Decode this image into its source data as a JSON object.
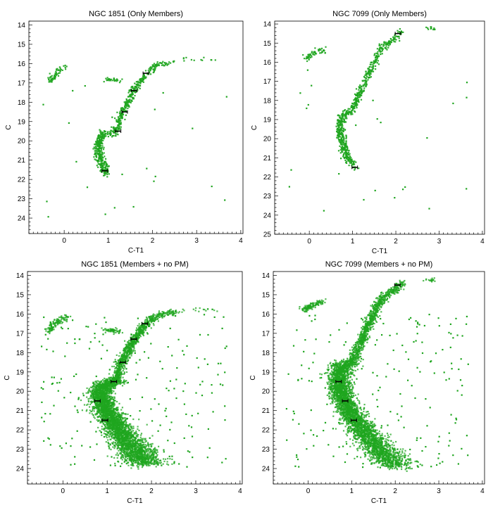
{
  "chart_data": [
    {
      "type": "scatter",
      "title": "NGC 1851 (Only Members)",
      "xlabel": "C-T1",
      "ylabel": "C",
      "xlim": [
        -0.8,
        4.05
      ],
      "ylim": [
        24.8,
        13.8
      ],
      "y_inverted": true,
      "xticks": [
        0,
        1,
        2,
        3,
        4
      ],
      "yticks": [
        14,
        15,
        16,
        17,
        18,
        19,
        20,
        21,
        22,
        23,
        24
      ],
      "marker_color": "#1fa51f",
      "density": "low",
      "sequences": {
        "main_sequence": [
          [
            0.95,
            21.7
          ],
          [
            0.83,
            21.0
          ],
          [
            0.78,
            20.4
          ],
          [
            0.8,
            19.9
          ],
          [
            0.9,
            19.65
          ],
          [
            1.1,
            19.6
          ],
          [
            1.2,
            19.45
          ]
        ],
        "red_giant_branch": [
          [
            1.2,
            19.45
          ],
          [
            1.25,
            19.0
          ],
          [
            1.32,
            18.5
          ],
          [
            1.45,
            18.0
          ],
          [
            1.55,
            17.5
          ],
          [
            1.7,
            17.0
          ],
          [
            1.88,
            16.5
          ],
          [
            2.1,
            16.1
          ],
          [
            2.5,
            15.9
          ]
        ],
        "horizontal_branch": [
          [
            -0.3,
            16.9
          ],
          [
            -0.2,
            16.5
          ],
          [
            -0.05,
            16.3
          ],
          [
            0.1,
            16.15
          ]
        ],
        "red_clump": [
          [
            0.95,
            16.8
          ],
          [
            1.1,
            16.85
          ],
          [
            1.25,
            16.9
          ]
        ],
        "bright_giants": [
          [
            2.6,
            15.8
          ],
          [
            3.0,
            15.75
          ],
          [
            3.45,
            15.8
          ]
        ]
      },
      "error_bars": [
        [
          0.92,
          21.55
        ],
        [
          1.22,
          19.5
        ],
        [
          1.37,
          18.5
        ],
        [
          1.58,
          17.4
        ],
        [
          1.85,
          16.5
        ]
      ]
    },
    {
      "type": "scatter",
      "title": "NGC 7099 (Only Members)",
      "xlabel": "C-T1",
      "ylabel": "C",
      "xlim": [
        -0.8,
        4.05
      ],
      "ylim": [
        25.0,
        13.85
      ],
      "y_inverted": true,
      "xticks": [
        0,
        1,
        2,
        3,
        4
      ],
      "yticks": [
        14,
        15,
        16,
        17,
        18,
        19,
        20,
        21,
        22,
        23,
        24,
        25
      ],
      "marker_color": "#1fa51f",
      "density": "low",
      "sequences": {
        "main_sequence": [
          [
            1.05,
            21.5
          ],
          [
            0.85,
            20.8
          ],
          [
            0.75,
            20.0
          ],
          [
            0.7,
            19.4
          ],
          [
            0.75,
            18.9
          ],
          [
            0.9,
            18.6
          ],
          [
            1.0,
            18.5
          ]
        ],
        "red_giant_branch": [
          [
            1.0,
            18.5
          ],
          [
            1.1,
            18.0
          ],
          [
            1.2,
            17.5
          ],
          [
            1.3,
            17.0
          ],
          [
            1.4,
            16.5
          ],
          [
            1.5,
            16.0
          ],
          [
            1.6,
            15.5
          ],
          [
            1.75,
            15.1
          ],
          [
            1.95,
            14.8
          ],
          [
            2.15,
            14.4
          ]
        ],
        "horizontal_branch": [
          [
            -0.1,
            15.8
          ],
          [
            0.05,
            15.6
          ],
          [
            0.2,
            15.45
          ],
          [
            0.35,
            15.35
          ]
        ],
        "bright_giants": [
          [
            2.75,
            14.2
          ],
          [
            2.85,
            14.25
          ]
        ]
      },
      "error_bars": [
        [
          1.05,
          21.5
        ],
        [
          2.05,
          14.5
        ]
      ]
    },
    {
      "type": "scatter",
      "title": "NGC 1851 (Members + no PM)",
      "xlabel": "C-T1",
      "ylabel": "C",
      "xlim": [
        -0.8,
        4.05
      ],
      "ylim": [
        24.8,
        13.8
      ],
      "y_inverted": true,
      "xticks": [
        0,
        1,
        2,
        3,
        4
      ],
      "yticks": [
        14,
        15,
        16,
        17,
        18,
        19,
        20,
        21,
        22,
        23,
        24
      ],
      "marker_color": "#1fa51f",
      "density": "high",
      "sequences": {
        "main_sequence": [
          [
            1.75,
            23.8
          ],
          [
            1.55,
            23.2
          ],
          [
            1.35,
            22.5
          ],
          [
            1.12,
            21.7
          ],
          [
            0.95,
            21.0
          ],
          [
            0.85,
            20.4
          ],
          [
            0.85,
            19.9
          ],
          [
            1.0,
            19.6
          ],
          [
            1.2,
            19.45
          ]
        ],
        "red_giant_branch": [
          [
            1.2,
            19.45
          ],
          [
            1.25,
            19.0
          ],
          [
            1.32,
            18.5
          ],
          [
            1.45,
            18.0
          ],
          [
            1.55,
            17.5
          ],
          [
            1.7,
            17.0
          ],
          [
            1.88,
            16.5
          ],
          [
            2.1,
            16.1
          ],
          [
            2.5,
            15.9
          ]
        ],
        "horizontal_branch": [
          [
            -0.3,
            16.9
          ],
          [
            -0.2,
            16.5
          ],
          [
            -0.05,
            16.3
          ],
          [
            0.1,
            16.15
          ]
        ],
        "red_clump": [
          [
            0.95,
            16.8
          ],
          [
            1.1,
            16.85
          ],
          [
            1.25,
            16.9
          ]
        ],
        "bright_giants": [
          [
            2.6,
            15.8
          ],
          [
            3.0,
            15.75
          ],
          [
            3.45,
            15.8
          ]
        ]
      },
      "error_bars": [
        [
          0.95,
          21.5
        ],
        [
          0.78,
          20.5
        ],
        [
          1.15,
          19.5
        ],
        [
          1.35,
          18.5
        ],
        [
          1.6,
          17.3
        ],
        [
          1.85,
          16.5
        ]
      ]
    },
    {
      "type": "scatter",
      "title": "NGC 7099 (Members + no PM)",
      "xlabel": "C-T1",
      "ylabel": "C",
      "xlim": [
        -0.8,
        4.05
      ],
      "ylim": [
        24.8,
        13.8
      ],
      "y_inverted": true,
      "xticks": [
        0,
        1,
        2,
        3,
        4
      ],
      "yticks": [
        14,
        15,
        16,
        17,
        18,
        19,
        20,
        21,
        22,
        23,
        24
      ],
      "marker_color": "#1fa51f",
      "density": "high",
      "sequences": {
        "main_sequence": [
          [
            1.9,
            23.9
          ],
          [
            1.6,
            23.2
          ],
          [
            1.35,
            22.5
          ],
          [
            1.1,
            21.7
          ],
          [
            0.9,
            21.0
          ],
          [
            0.78,
            20.3
          ],
          [
            0.72,
            19.6
          ],
          [
            0.72,
            19.0
          ],
          [
            0.85,
            18.6
          ],
          [
            1.0,
            18.5
          ]
        ],
        "red_giant_branch": [
          [
            1.0,
            18.5
          ],
          [
            1.1,
            18.0
          ],
          [
            1.2,
            17.5
          ],
          [
            1.3,
            17.0
          ],
          [
            1.4,
            16.5
          ],
          [
            1.5,
            16.0
          ],
          [
            1.6,
            15.5
          ],
          [
            1.75,
            15.1
          ],
          [
            1.95,
            14.8
          ],
          [
            2.15,
            14.4
          ]
        ],
        "horizontal_branch": [
          [
            -0.1,
            15.8
          ],
          [
            0.05,
            15.6
          ],
          [
            0.2,
            15.45
          ],
          [
            0.35,
            15.35
          ]
        ],
        "bright_giants": [
          [
            2.75,
            14.2
          ],
          [
            2.85,
            14.25
          ]
        ]
      },
      "error_bars": [
        [
          1.05,
          21.5
        ],
        [
          0.85,
          20.5
        ],
        [
          0.7,
          19.5
        ],
        [
          2.05,
          14.5
        ]
      ]
    }
  ]
}
